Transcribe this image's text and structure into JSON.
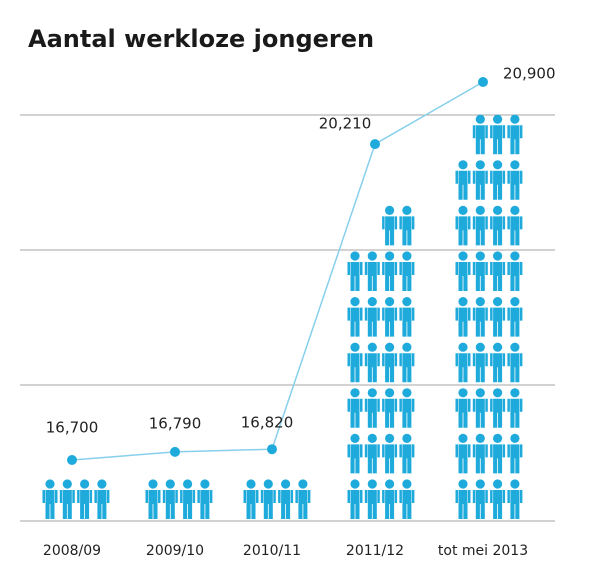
{
  "chart_data": {
    "type": "line",
    "title": "Aantal werkloze jongeren",
    "categories": [
      "2008/09",
      "2009/10",
      "2010/11",
      "2011/12",
      "tot mei 2013"
    ],
    "values": [
      16700,
      16790,
      16820,
      20210,
      20900
    ],
    "value_labels": [
      "16,700",
      "16,790",
      "16,820",
      "20,210",
      "20,900"
    ],
    "icons": [
      4,
      4,
      4,
      26,
      35
    ],
    "color": "#86d0ec",
    "icon_color": "#1faadc"
  }
}
